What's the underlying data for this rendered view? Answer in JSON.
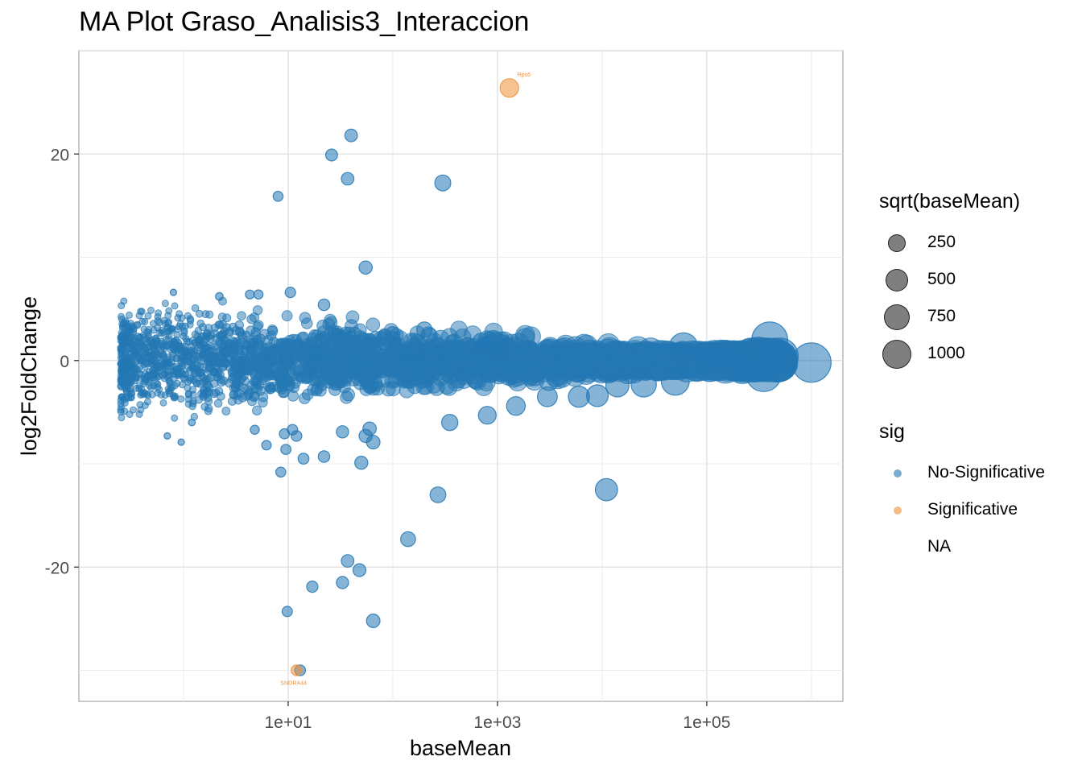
{
  "title": "MA Plot Graso_Analisis3_Interaccion",
  "chart_data": {
    "type": "scatter",
    "title": "MA Plot Graso_Analisis3_Interaccion",
    "xlabel": "baseMean",
    "ylabel": "log2FoldChange",
    "x_scale": "log10",
    "xlim": [
      0.1,
      2000000
    ],
    "ylim": [
      -33,
      30
    ],
    "x_ticks": [
      {
        "value": 10,
        "label": "1e+01"
      },
      {
        "value": 1000,
        "label": "1e+03"
      },
      {
        "value": 100000,
        "label": "1e+05"
      }
    ],
    "y_ticks": [
      {
        "value": 20,
        "label": "20"
      },
      {
        "value": 0,
        "label": "0"
      },
      {
        "value": -20,
        "label": "-20"
      }
    ],
    "grid": true,
    "legend_placement": "right",
    "colors": {
      "No-Significative": "#2377b4",
      "Significative": "#f0913a"
    },
    "series": [
      {
        "name": "No-Significative",
        "points": [
          {
            "x": 40,
            "y": 21.8
          },
          {
            "x": 26,
            "y": 19.9
          },
          {
            "x": 37,
            "y": 17.6
          },
          {
            "x": 300,
            "y": 17.2
          },
          {
            "x": 8,
            "y": 15.9
          },
          {
            "x": 55,
            "y": 9.0
          },
          {
            "x": 0.8,
            "y": 6.6
          },
          {
            "x": 10.5,
            "y": 6.6
          },
          {
            "x": 2.2,
            "y": 6.2
          },
          {
            "x": 4.3,
            "y": 6.4
          },
          {
            "x": 5.2,
            "y": 6.4
          },
          {
            "x": 22,
            "y": 5.4
          },
          {
            "x": 11,
            "y": -6.7
          },
          {
            "x": 4.8,
            "y": -6.7
          },
          {
            "x": 1.2,
            "y": -6.0
          },
          {
            "x": 0.7,
            "y": -7.3
          },
          {
            "x": 0.95,
            "y": -7.9
          },
          {
            "x": 6.2,
            "y": -8.2
          },
          {
            "x": 9.2,
            "y": -7.1
          },
          {
            "x": 12,
            "y": -7.3
          },
          {
            "x": 55,
            "y": -7.3
          },
          {
            "x": 60,
            "y": -6.6
          },
          {
            "x": 65,
            "y": -7.9
          },
          {
            "x": 33,
            "y": -6.9
          },
          {
            "x": 9.5,
            "y": -8.6
          },
          {
            "x": 14,
            "y": -9.5
          },
          {
            "x": 22,
            "y": -9.3
          },
          {
            "x": 50,
            "y": -9.9
          },
          {
            "x": 8.5,
            "y": -10.8
          },
          {
            "x": 270,
            "y": -13.0
          },
          {
            "x": 140,
            "y": -17.3
          },
          {
            "x": 37,
            "y": -19.4
          },
          {
            "x": 48,
            "y": -20.3
          },
          {
            "x": 17,
            "y": -21.9
          },
          {
            "x": 33,
            "y": -21.5
          },
          {
            "x": 9.8,
            "y": -24.3
          },
          {
            "x": 65,
            "y": -25.2
          },
          {
            "x": 13,
            "y": -30.0
          },
          {
            "x": 350,
            "y": -6.0
          },
          {
            "x": 800,
            "y": -5.3
          },
          {
            "x": 1500,
            "y": -4.4
          },
          {
            "x": 3000,
            "y": -3.5
          },
          {
            "x": 6000,
            "y": -3.5
          },
          {
            "x": 9000,
            "y": -3.4
          },
          {
            "x": 200,
            "y": 3.0
          },
          {
            "x": 100,
            "y": 2.6
          },
          {
            "x": 1100,
            "y": 1.6
          },
          {
            "x": 700,
            "y": 1.8
          },
          {
            "x": 11000,
            "y": -12.5
          },
          {
            "x": 14000,
            "y": -2.4
          },
          {
            "x": 25000,
            "y": -2.3
          },
          {
            "x": 50000,
            "y": -2.0
          },
          {
            "x": 60000,
            "y": 1.3
          },
          {
            "x": 110000,
            "y": 0.3
          },
          {
            "x": 150000,
            "y": 0.4
          },
          {
            "x": 220000,
            "y": -0.6
          },
          {
            "x": 350000,
            "y": -1.3
          },
          {
            "x": 400000,
            "y": 2.0
          },
          {
            "x": 500000,
            "y": 0.4
          },
          {
            "x": 1000000,
            "y": -0.2
          }
        ]
      },
      {
        "name": "Significative",
        "points": [
          {
            "x": 1300,
            "y": 26.4,
            "label": "Rps6"
          },
          {
            "x": 12,
            "y": -30.0,
            "label": "SNORA44"
          }
        ]
      }
    ]
  },
  "legend": {
    "size_title": "sqrt(baseMean)",
    "size_items": [
      {
        "label": "250",
        "value": 250
      },
      {
        "label": "500",
        "value": 500
      },
      {
        "label": "750",
        "value": 750
      },
      {
        "label": "1000",
        "value": 1000
      }
    ],
    "color_title": "sig",
    "color_items": [
      {
        "label": "No-Significative",
        "color": "#2377b4"
      },
      {
        "label": "Significative",
        "color": "#f0913a"
      },
      {
        "label": "NA",
        "color": ""
      }
    ]
  }
}
